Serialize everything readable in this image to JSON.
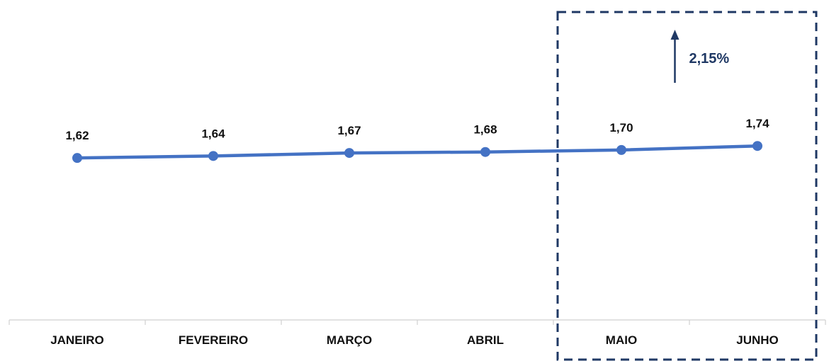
{
  "chart_data": {
    "type": "line",
    "categories": [
      "JANEIRO",
      "FEVEREIRO",
      "MARÇO",
      "ABRIL",
      "MAIO",
      "JUNHO"
    ],
    "series": [
      {
        "values": [
          1.62,
          1.64,
          1.67,
          1.68,
          1.7,
          1.74
        ],
        "color": "#4472C4"
      }
    ],
    "data_labels": [
      "1,62",
      "1,64",
      "1,67",
      "1,68",
      "1,70",
      "1,74"
    ],
    "title": "",
    "xlabel": "",
    "ylabel": "",
    "y_axis_visible": false,
    "ylim": [
      0,
      3.2
    ],
    "grid": false,
    "highlight": {
      "categories": [
        "MAIO",
        "JUNHO"
      ],
      "style": "dashed-box",
      "color": "#1F3864",
      "annotation": {
        "text": "2,15%",
        "direction": "up"
      }
    }
  }
}
